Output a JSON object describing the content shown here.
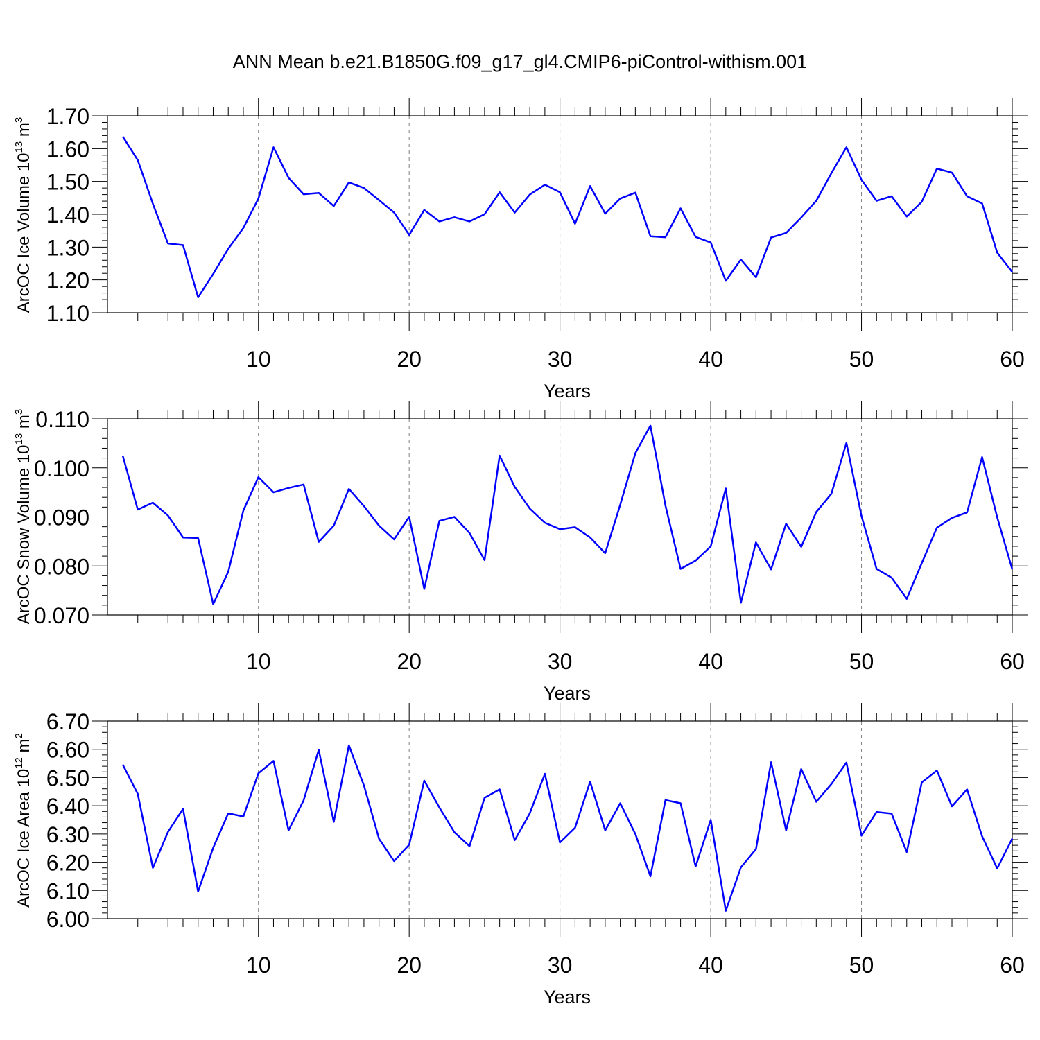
{
  "title": "ANN Mean b.e21.B1850G.f09_g17_gl4.CMIP6-piControl-withism.001",
  "colors": {
    "line": "#0000ff",
    "axis": "#000000",
    "grid": "#808080",
    "background": "#ffffff"
  },
  "chart_data": [
    {
      "type": "line",
      "ylabel": {
        "text": "ArcOC Ice Volume 10",
        "exp": "13",
        "unit": " m",
        "unit_exp": "3"
      },
      "xlabel": "Years",
      "xlim": [
        1,
        60
      ],
      "ylim": [
        1.1,
        1.7
      ],
      "xticks": [
        "10",
        "20",
        "30",
        "40",
        "50",
        "60"
      ],
      "yticks": [
        "1.10",
        "1.20",
        "1.30",
        "1.40",
        "1.50",
        "1.60",
        "1.70"
      ],
      "grid": "vertical dashed at major x ticks",
      "x": [
        1,
        2,
        3,
        4,
        5,
        6,
        7,
        8,
        9,
        10,
        11,
        12,
        13,
        14,
        15,
        16,
        17,
        18,
        19,
        20,
        21,
        22,
        23,
        24,
        25,
        26,
        27,
        28,
        29,
        30,
        31,
        32,
        33,
        34,
        35,
        36,
        37,
        38,
        39,
        40,
        41,
        42,
        43,
        44,
        45,
        46,
        47,
        48,
        49,
        50,
        51,
        52,
        53,
        54,
        55,
        56,
        57,
        58,
        59,
        60
      ],
      "series": [
        {
          "values": [
            1.637,
            1.565,
            1.432,
            1.311,
            1.306,
            1.147,
            1.218,
            1.295,
            1.358,
            1.448,
            1.604,
            1.511,
            1.461,
            1.465,
            1.425,
            1.497,
            1.48,
            1.443,
            1.405,
            1.337,
            1.413,
            1.378,
            1.391,
            1.378,
            1.4,
            1.467,
            1.405,
            1.46,
            1.49,
            1.467,
            1.371,
            1.486,
            1.402,
            1.448,
            1.466,
            1.333,
            1.33,
            1.418,
            1.331,
            1.314,
            1.197,
            1.262,
            1.208,
            1.329,
            1.343,
            1.39,
            1.441,
            1.525,
            1.604,
            1.505,
            1.441,
            1.455,
            1.393,
            1.438,
            1.539,
            1.527,
            1.455,
            1.433,
            1.283,
            1.224
          ]
        }
      ]
    },
    {
      "type": "line",
      "ylabel": {
        "text": "ArcOC Snow Volume 10",
        "exp": "13",
        "unit": " m",
        "unit_exp": "3"
      },
      "xlabel": "Years",
      "xlim": [
        1,
        60
      ],
      "ylim": [
        0.07,
        0.11
      ],
      "xticks": [
        "10",
        "20",
        "30",
        "40",
        "50",
        "60"
      ],
      "yticks": [
        "0.070",
        "0.080",
        "0.090",
        "0.100",
        "0.110"
      ],
      "grid": "vertical dashed at major x ticks",
      "x": [
        1,
        2,
        3,
        4,
        5,
        6,
        7,
        8,
        9,
        10,
        11,
        12,
        13,
        14,
        15,
        16,
        17,
        18,
        19,
        20,
        21,
        22,
        23,
        24,
        25,
        26,
        27,
        28,
        29,
        30,
        31,
        32,
        33,
        34,
        35,
        36,
        37,
        38,
        39,
        40,
        41,
        42,
        43,
        44,
        45,
        46,
        47,
        48,
        49,
        50,
        51,
        52,
        53,
        54,
        55,
        56,
        57,
        58,
        59,
        60
      ],
      "series": [
        {
          "values": [
            0.1025,
            0.0915,
            0.0929,
            0.0903,
            0.0858,
            0.0857,
            0.0722,
            0.0788,
            0.0913,
            0.0981,
            0.095,
            0.0959,
            0.0966,
            0.0849,
            0.0882,
            0.0957,
            0.0922,
            0.0882,
            0.0854,
            0.09,
            0.0753,
            0.0892,
            0.09,
            0.0867,
            0.0812,
            0.1025,
            0.0961,
            0.0917,
            0.0888,
            0.0875,
            0.0879,
            0.0858,
            0.0826,
            0.0925,
            0.103,
            0.1086,
            0.0923,
            0.0794,
            0.0811,
            0.084,
            0.0958,
            0.0725,
            0.0848,
            0.0793,
            0.0886,
            0.0839,
            0.091,
            0.0947,
            0.1051,
            0.0902,
            0.0794,
            0.0776,
            0.0733,
            0.0806,
            0.0878,
            0.0898,
            0.0909,
            0.1022,
            0.0899,
            0.0793
          ]
        }
      ]
    },
    {
      "type": "line",
      "ylabel": {
        "text": "ArcOC Ice Area 10",
        "exp": "12",
        "unit": " m",
        "unit_exp": "2"
      },
      "xlabel": "Years",
      "xlim": [
        1,
        60
      ],
      "ylim": [
        6.0,
        6.7
      ],
      "xticks": [
        "10",
        "20",
        "30",
        "40",
        "50",
        "60"
      ],
      "yticks": [
        "6.00",
        "6.10",
        "6.20",
        "6.30",
        "6.40",
        "6.50",
        "6.60",
        "6.70"
      ],
      "grid": "vertical dashed at major x ticks",
      "x": [
        1,
        2,
        3,
        4,
        5,
        6,
        7,
        8,
        9,
        10,
        11,
        12,
        13,
        14,
        15,
        16,
        17,
        18,
        19,
        20,
        21,
        22,
        23,
        24,
        25,
        26,
        27,
        28,
        29,
        30,
        31,
        32,
        33,
        34,
        35,
        36,
        37,
        38,
        39,
        40,
        41,
        42,
        43,
        44,
        45,
        46,
        47,
        48,
        49,
        50,
        51,
        52,
        53,
        54,
        55,
        56,
        57,
        58,
        59,
        60
      ],
      "series": [
        {
          "values": [
            6.546,
            6.442,
            6.18,
            6.307,
            6.389,
            6.096,
            6.251,
            6.373,
            6.362,
            6.515,
            6.559,
            6.313,
            6.419,
            6.598,
            6.343,
            6.614,
            6.472,
            6.283,
            6.204,
            6.262,
            6.489,
            6.394,
            6.306,
            6.257,
            6.428,
            6.458,
            6.278,
            6.373,
            6.513,
            6.27,
            6.322,
            6.485,
            6.313,
            6.409,
            6.3,
            6.15,
            6.42,
            6.409,
            6.185,
            6.35,
            6.028,
            6.182,
            6.246,
            6.554,
            6.313,
            6.53,
            6.414,
            6.477,
            6.553,
            6.294,
            6.378,
            6.372,
            6.236,
            6.483,
            6.525,
            6.398,
            6.458,
            6.292,
            6.178,
            6.284
          ]
        }
      ]
    }
  ]
}
